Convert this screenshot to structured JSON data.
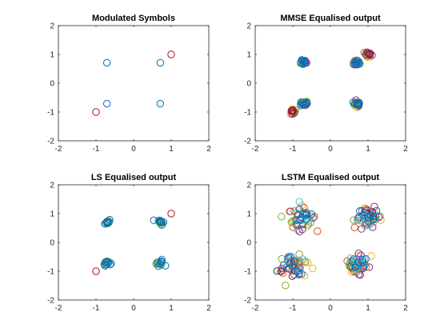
{
  "chart_data": [
    {
      "type": "scatter",
      "title": "Modulated Symbols",
      "xlim": [
        -2,
        2
      ],
      "ylim": [
        -2,
        2
      ],
      "xticks": [
        -2,
        -1,
        0,
        1,
        2
      ],
      "yticks": [
        -2,
        -1,
        0,
        1,
        2
      ],
      "grid": false,
      "marker": "circle-open",
      "series": [
        {
          "points": [
            [
              -0.71,
              0.71
            ],
            [
              0.71,
              0.71
            ],
            [
              -0.71,
              -0.71
            ],
            [
              0.71,
              -0.71
            ]
          ],
          "color": "#0072BD",
          "spread": 0,
          "count": 1
        },
        {
          "points": [
            [
              1.0,
              1.0
            ],
            [
              -1.0,
              -1.0
            ]
          ],
          "color": "#A2142F",
          "spread": 0,
          "count": 1
        }
      ]
    },
    {
      "type": "scatter",
      "title": "MMSE Equalised output",
      "xlim": [
        -2,
        2
      ],
      "ylim": [
        -2,
        2
      ],
      "xticks": [
        -2,
        -1,
        0,
        1,
        2
      ],
      "yticks": [
        -2,
        -1,
        0,
        1,
        2
      ],
      "grid": false,
      "marker": "circle-open",
      "series": [
        {
          "points": [
            [
              -0.71,
              0.71
            ],
            [
              0.71,
              0.71
            ],
            [
              -0.71,
              -0.71
            ],
            [
              0.71,
              -0.71
            ],
            [
              1.0,
              1.0
            ],
            [
              -1.0,
              -1.0
            ]
          ],
          "color": "#EDB120",
          "spread": 0.1,
          "count": 5
        },
        {
          "points": [
            [
              -0.71,
              0.71
            ],
            [
              0.71,
              0.71
            ],
            [
              -0.71,
              -0.71
            ],
            [
              0.71,
              -0.71
            ],
            [
              1.0,
              1.0
            ],
            [
              -1.0,
              -1.0
            ]
          ],
          "color": "#77AC30",
          "spread": 0.1,
          "count": 5
        },
        {
          "points": [
            [
              -0.71,
              0.71
            ],
            [
              0.71,
              0.71
            ],
            [
              -0.71,
              -0.71
            ],
            [
              0.71,
              -0.71
            ],
            [
              1.0,
              1.0
            ],
            [
              -1.0,
              -1.0
            ]
          ],
          "color": "#7E2F8E",
          "spread": 0.1,
          "count": 4
        },
        {
          "points": [
            [
              1.0,
              1.0
            ],
            [
              -1.0,
              -1.0
            ]
          ],
          "color": "#A2142F",
          "spread": 0.08,
          "count": 5
        },
        {
          "points": [
            [
              -0.71,
              0.71
            ],
            [
              0.71,
              0.71
            ],
            [
              -0.71,
              -0.71
            ],
            [
              0.71,
              -0.71
            ]
          ],
          "color": "#0072BD",
          "spread": 0.09,
          "count": 8
        }
      ]
    },
    {
      "type": "scatter",
      "title": "LS Equalised output",
      "xlim": [
        -2,
        2
      ],
      "ylim": [
        -2,
        2
      ],
      "xticks": [
        -2,
        -1,
        0,
        1,
        2
      ],
      "yticks": [
        -2,
        -1,
        0,
        1,
        2
      ],
      "grid": false,
      "marker": "circle-open",
      "series": [
        {
          "points": [
            [
              -0.71,
              0.71
            ],
            [
              0.71,
              0.71
            ],
            [
              -0.71,
              -0.71
            ],
            [
              0.71,
              -0.71
            ]
          ],
          "color": "#EDB120",
          "spread": 0.1,
          "count": 5
        },
        {
          "points": [
            [
              -0.71,
              0.71
            ],
            [
              0.71,
              0.71
            ],
            [
              -0.71,
              -0.71
            ],
            [
              0.71,
              -0.71
            ]
          ],
          "color": "#77AC30",
          "spread": 0.1,
          "count": 4
        },
        {
          "points": [
            [
              1.0,
              1.0
            ],
            [
              -1.0,
              -1.0
            ]
          ],
          "color": "#A2142F",
          "spread": 0,
          "count": 1
        },
        {
          "points": [
            [
              -0.71,
              0.71
            ],
            [
              0.71,
              0.71
            ],
            [
              -0.71,
              -0.71
            ],
            [
              0.71,
              -0.71
            ]
          ],
          "color": "#0072BD",
          "spread": 0.1,
          "count": 9
        }
      ]
    },
    {
      "type": "scatter",
      "title": "LSTM Equalised output",
      "xlim": [
        -2,
        2
      ],
      "ylim": [
        -2,
        2
      ],
      "xticks": [
        -2,
        -1,
        0,
        1,
        2
      ],
      "yticks": [
        -2,
        -1,
        0,
        1,
        2
      ],
      "grid": false,
      "marker": "circle-open",
      "series": [
        {
          "points": [
            [
              -0.75,
              0.85
            ],
            [
              1.0,
              0.85
            ],
            [
              -1.0,
              -0.85
            ],
            [
              0.7,
              -0.8
            ]
          ],
          "color": "#EDB120",
          "spread": 0.38,
          "count": 10
        },
        {
          "points": [
            [
              -0.75,
              0.85
            ],
            [
              1.0,
              0.85
            ],
            [
              -1.0,
              -0.85
            ],
            [
              0.7,
              -0.8
            ]
          ],
          "color": "#77AC30",
          "spread": 0.38,
          "count": 10
        },
        {
          "points": [
            [
              -0.75,
              0.85
            ],
            [
              1.0,
              0.85
            ],
            [
              -1.0,
              -0.85
            ],
            [
              0.7,
              -0.8
            ]
          ],
          "color": "#7E2F8E",
          "spread": 0.36,
          "count": 9
        },
        {
          "points": [
            [
              -0.75,
              0.85
            ],
            [
              1.0,
              0.85
            ],
            [
              -1.0,
              -0.85
            ],
            [
              0.7,
              -0.8
            ]
          ],
          "color": "#D95319",
          "spread": 0.36,
          "count": 9
        },
        {
          "points": [
            [
              1.0,
              1.0
            ],
            [
              -1.0,
              -1.0
            ]
          ],
          "color": "#A2142F",
          "spread": 0.3,
          "count": 6
        },
        {
          "points": [
            [
              -0.75,
              0.85
            ],
            [
              1.0,
              0.85
            ],
            [
              -1.0,
              -0.85
            ],
            [
              0.7,
              -0.8
            ]
          ],
          "color": "#4DBEEE",
          "spread": 0.34,
          "count": 8
        },
        {
          "points": [
            [
              -0.75,
              0.85
            ],
            [
              1.0,
              0.85
            ],
            [
              -1.0,
              -0.85
            ],
            [
              0.7,
              -0.8
            ]
          ],
          "color": "#0072BD",
          "spread": 0.32,
          "count": 10
        }
      ]
    }
  ]
}
